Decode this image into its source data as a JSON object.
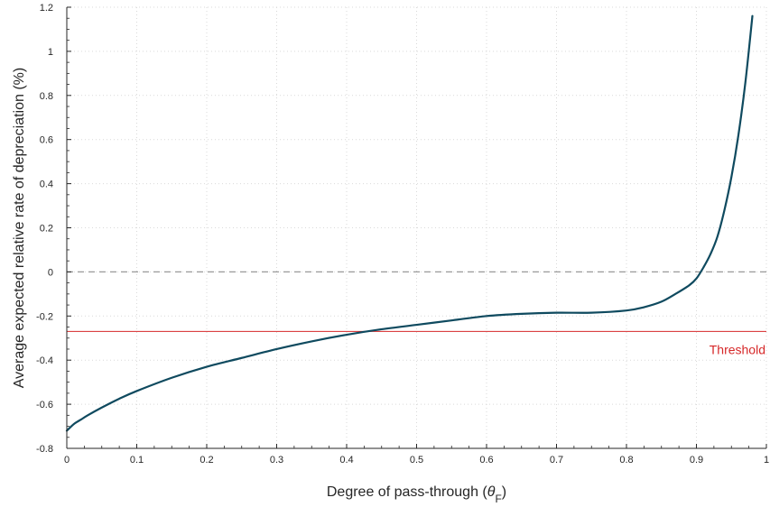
{
  "chart_data": {
    "type": "line",
    "xlabel_prefix": "Degree of pass-through (",
    "xlabel_symbol": "θ",
    "xlabel_subscript": "F",
    "xlabel_suffix": ")",
    "ylabel": "Average expected relative rate of depreciation (%)",
    "xlim": [
      0,
      1
    ],
    "ylim": [
      -0.8,
      1.2
    ],
    "x_ticks": [
      0,
      0.1,
      0.2,
      0.3,
      0.4,
      0.5,
      0.6,
      0.7,
      0.8,
      0.9,
      1
    ],
    "x_tick_labels": [
      "0",
      "0.1",
      "0.2",
      "0.3",
      "0.4",
      "0.5",
      "0.6",
      "0.7",
      "0.8",
      "0.9",
      "1"
    ],
    "y_ticks": [
      -0.8,
      -0.6,
      -0.4,
      -0.2,
      0,
      0.2,
      0.4,
      0.6,
      0.8,
      1,
      1.2
    ],
    "y_tick_labels": [
      "-0.8",
      "-0.6",
      "-0.4",
      "-0.2",
      "0",
      "0.2",
      "0.4",
      "0.6",
      "0.8",
      "1",
      "1.2"
    ],
    "grid": true,
    "series": [
      {
        "color": "#0f4a5f",
        "x": [
          0,
          0.01,
          0.02,
          0.03,
          0.05,
          0.075,
          0.1,
          0.15,
          0.2,
          0.25,
          0.3,
          0.35,
          0.4,
          0.45,
          0.5,
          0.55,
          0.6,
          0.65,
          0.7,
          0.75,
          0.8,
          0.825,
          0.85,
          0.87,
          0.89,
          0.9,
          0.91,
          0.92,
          0.93,
          0.94,
          0.95,
          0.96,
          0.97,
          0.98
        ],
        "y": [
          -0.72,
          -0.69,
          -0.67,
          -0.65,
          -0.615,
          -0.575,
          -0.54,
          -0.48,
          -0.43,
          -0.39,
          -0.35,
          -0.315,
          -0.285,
          -0.26,
          -0.24,
          -0.22,
          -0.2,
          -0.19,
          -0.185,
          -0.185,
          -0.175,
          -0.16,
          -0.135,
          -0.1,
          -0.06,
          -0.03,
          0.02,
          0.08,
          0.16,
          0.28,
          0.43,
          0.62,
          0.86,
          1.16
        ]
      }
    ],
    "zero_line": {
      "y": 0,
      "color": "#999999",
      "style": "dashed"
    },
    "threshold": {
      "y": -0.27,
      "color": "#d62728",
      "label": "Threshold"
    }
  }
}
